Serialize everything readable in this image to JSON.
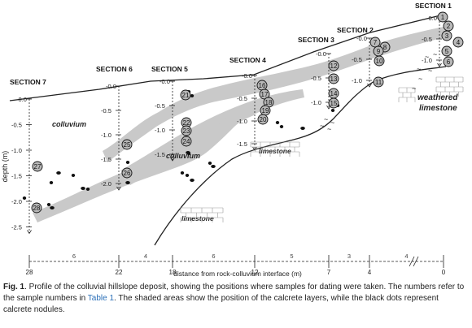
{
  "figure": {
    "sections": [
      {
        "label": "SECTION 7",
        "zero": "-0.0",
        "ticks": [
          "-0.5",
          "-1.0",
          "-1.5",
          "-2.0",
          "-2.5"
        ]
      },
      {
        "label": "SECTION 6",
        "zero": "-0.0",
        "ticks": [
          "-0.5",
          "-1.0",
          "-1.5",
          "-2.0"
        ]
      },
      {
        "label": "SECTION 5",
        "zero": "-0.0",
        "ticks": [
          "-0.5",
          "-1.0",
          "-1.5"
        ]
      },
      {
        "label": "SECTION 4",
        "zero": "-0.0",
        "ticks": [
          "-0.5",
          "-1.0",
          "-1.5"
        ]
      },
      {
        "label": "SECTION 3",
        "zero": "-0.0",
        "ticks": [
          "-0.5",
          "-1.0"
        ]
      },
      {
        "label": "SECTION 2",
        "zero": "-0.0",
        "ticks": [
          "-0.5",
          "-1.0"
        ]
      },
      {
        "label": "SECTION 1",
        "zero": "-0.0",
        "ticks": [
          "-0.5",
          "-1.0"
        ]
      }
    ],
    "y_axis_label": "depth (m)",
    "x_axis_label": "distance from rock-colluvium interface (m)",
    "x_ticks": [
      "28",
      "22",
      "18",
      "12",
      "7",
      "4",
      "0"
    ],
    "interval_labels": [
      "6",
      "4",
      "6",
      "5",
      "3",
      "4"
    ],
    "layer_labels": {
      "colluvium_1": "colluvium",
      "colluvium_2": "colluvium",
      "limestone_1": "limestone",
      "limestone_2": "limestone",
      "weathered_1": "weathered",
      "weathered_2": "limestone"
    },
    "samples": [
      "1",
      "2",
      "3",
      "4",
      "5",
      "6",
      "7",
      "8",
      "9",
      "10",
      "11",
      "12",
      "13",
      "14",
      "15",
      "16",
      "17",
      "18",
      "19",
      "20",
      "21",
      "22",
      "23",
      "24",
      "25",
      "26",
      "27",
      "28"
    ],
    "colors": {
      "calcrete": "#c9c9c9",
      "sample_fill": "#b8b8b8",
      "nodule": "#111111",
      "line": "#222222"
    }
  },
  "caption": {
    "fig_label": "Fig. 1",
    "text_before_link": ". Profile of the colluvial hillslope deposit, showing the positions where samples for dating were taken. The numbers refer to the sample numbers in ",
    "link_text": "Table 1",
    "text_after_link": ". The shaded areas show the position of the calcrete layers, while the black dots represent calcrete nodules."
  }
}
